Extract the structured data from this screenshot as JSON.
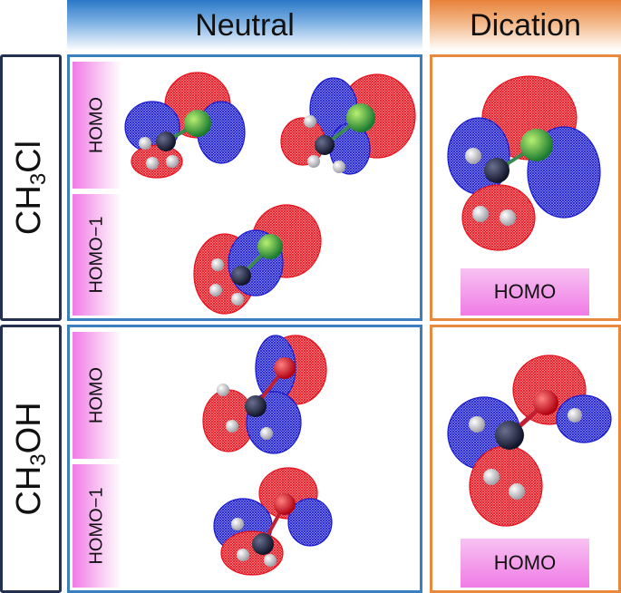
{
  "columns": {
    "neutral": "Neutral",
    "dication": "Dication"
  },
  "rows": [
    {
      "molecule_main": "CH",
      "molecule_sub": "3",
      "molecule_tail": "Cl"
    },
    {
      "molecule_main": "CH",
      "molecule_sub": "3",
      "molecule_tail": "OH"
    }
  ],
  "orbitals": {
    "homo": "HOMO",
    "homo_minus_1": "HOMO−1"
  },
  "colors": {
    "neutral_accent": "#2a78c8",
    "dication_accent": "#e8823a",
    "positive_lobe": "#e8111b",
    "negative_lobe": "#1a1ad0",
    "carbon": "#1c2040",
    "chlorine": "#22a040",
    "oxygen": "#e0101a",
    "hydrogen": "#d8d8d8"
  }
}
